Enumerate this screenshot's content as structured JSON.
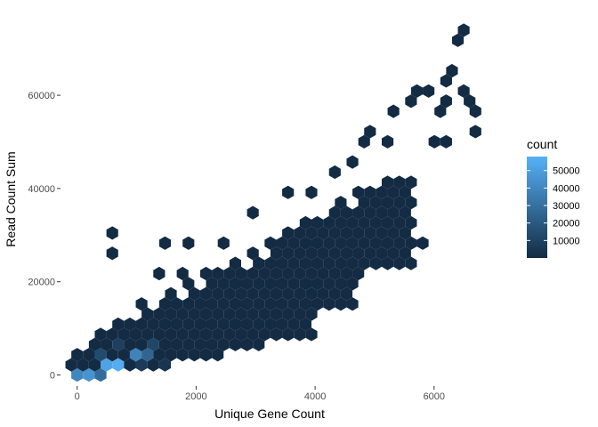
{
  "chart_data": {
    "type": "heatmap",
    "subtype": "hexbin",
    "xlabel": "Unique Gene Count",
    "ylabel": "Read Count Sum",
    "xlim": [
      -250,
      7050
    ],
    "ylim": [
      -2000,
      77000
    ],
    "x_ticks": [
      0,
      2000,
      4000,
      6000
    ],
    "x_tick_labels": [
      "0",
      "2000",
      "4000",
      "6000"
    ],
    "y_ticks": [
      0,
      20000,
      40000,
      60000
    ],
    "y_tick_labels": [
      "0",
      "20000",
      "40000",
      "60000"
    ],
    "grid": false,
    "legend": {
      "title": "count",
      "position": "right",
      "range": [
        1,
        58000
      ],
      "ticks": [
        10000,
        20000,
        30000,
        40000,
        50000
      ],
      "tick_labels": [
        "10000",
        "20000",
        "30000",
        "40000",
        "50000"
      ],
      "color_low": "#132B43",
      "color_high": "#56B1F7"
    },
    "high_count_bins": [
      {
        "x": 0,
        "y": 0,
        "count": 40000
      },
      {
        "x": 200,
        "y": 0,
        "count": 45000
      },
      {
        "x": 400,
        "y": 0,
        "count": 28000
      },
      {
        "x": 500,
        "y": 2000,
        "count": 52000
      },
      {
        "x": 700,
        "y": 2000,
        "count": 56000
      },
      {
        "x": 900,
        "y": 4000,
        "count": 38000
      },
      {
        "x": 1100,
        "y": 4000,
        "count": 25000
      },
      {
        "x": 300,
        "y": 4000,
        "count": 14000
      },
      {
        "x": 1300,
        "y": 6000,
        "count": 12000
      },
      {
        "x": 700,
        "y": 6000,
        "count": 9000
      },
      {
        "x": 1100,
        "y": 2000,
        "count": 7000
      },
      {
        "x": 1500,
        "y": 2000,
        "count": 4000
      }
    ],
    "isolated_bins": [
      {
        "x": 650,
        "y": 30000
      },
      {
        "x": 650,
        "y": 27000
      },
      {
        "x": 1400,
        "y": 27500
      },
      {
        "x": 1850,
        "y": 27500
      },
      {
        "x": 1300,
        "y": 21500
      },
      {
        "x": 1850,
        "y": 22000
      },
      {
        "x": 2500,
        "y": 27500
      },
      {
        "x": 3050,
        "y": 34500
      },
      {
        "x": 3600,
        "y": 38500
      },
      {
        "x": 3950,
        "y": 39500
      },
      {
        "x": 4300,
        "y": 43500
      },
      {
        "x": 4650,
        "y": 46500
      },
      {
        "x": 4750,
        "y": 50500
      },
      {
        "x": 4900,
        "y": 53000
      },
      {
        "x": 5400,
        "y": 57500
      },
      {
        "x": 5250,
        "y": 49500
      },
      {
        "x": 5700,
        "y": 59500
      },
      {
        "x": 5800,
        "y": 61500
      },
      {
        "x": 5950,
        "y": 60000
      },
      {
        "x": 6050,
        "y": 57500
      },
      {
        "x": 6200,
        "y": 62000
      },
      {
        "x": 6300,
        "y": 59500
      },
      {
        "x": 6450,
        "y": 60000
      },
      {
        "x": 6550,
        "y": 59000
      },
      {
        "x": 6650,
        "y": 57500
      },
      {
        "x": 6700,
        "y": 53000
      },
      {
        "x": 6300,
        "y": 65500
      },
      {
        "x": 6400,
        "y": 72500
      },
      {
        "x": 6500,
        "y": 74000
      },
      {
        "x": 6100,
        "y": 50500
      },
      {
        "x": 6300,
        "y": 49500
      },
      {
        "x": 5800,
        "y": 27500
      },
      {
        "x": 5600,
        "y": 23500
      },
      {
        "x": 4450,
        "y": 23500
      },
      {
        "x": 4700,
        "y": 22000
      },
      {
        "x": 4500,
        "y": 17500
      },
      {
        "x": 4400,
        "y": 15000
      },
      {
        "x": 4450,
        "y": 14500
      },
      {
        "x": 2800,
        "y": 7000
      },
      {
        "x": 3300,
        "y": 8500
      }
    ]
  }
}
